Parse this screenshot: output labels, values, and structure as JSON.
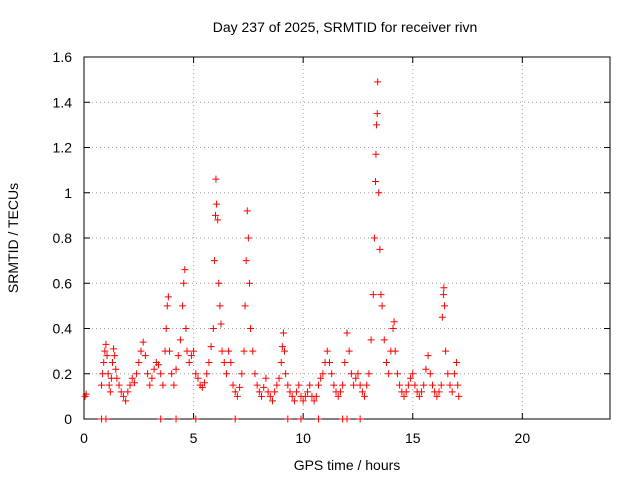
{
  "chart_data": {
    "type": "scatter",
    "title": "Day 237 of 2025, SRMTID for receiver rivn",
    "xlabel": "GPS time / hours",
    "ylabel": "SRMTID / TECUs",
    "xlim": [
      0,
      24
    ],
    "ylim": [
      0,
      1.6
    ],
    "xticks": [
      0,
      5,
      10,
      15,
      20
    ],
    "xtick_labels": [
      "0",
      "5",
      "10",
      "15",
      "20"
    ],
    "yticks": [
      0,
      0.2,
      0.4,
      0.6,
      0.8,
      1.0,
      1.2,
      1.4,
      1.6
    ],
    "ytick_labels": [
      "0",
      "0.2",
      "0.4",
      "0.6",
      "0.8",
      "1",
      "1.2",
      "1.4",
      "1.6"
    ],
    "grid": true,
    "marker": "+",
    "color": "#ff0000",
    "series": [
      {
        "name": "SRMTID",
        "points": [
          [
            0.05,
            0.1
          ],
          [
            0.1,
            0.11
          ],
          [
            0.8,
            0.15
          ],
          [
            0.85,
            0.2
          ],
          [
            0.9,
            0.25
          ],
          [
            0.95,
            0.3
          ],
          [
            1.0,
            0.33
          ],
          [
            1.05,
            0.28
          ],
          [
            1.1,
            0.2
          ],
          [
            1.15,
            0.15
          ],
          [
            1.2,
            0.12
          ],
          [
            1.25,
            0.18
          ],
          [
            1.3,
            0.25
          ],
          [
            1.35,
            0.31
          ],
          [
            1.4,
            0.28
          ],
          [
            1.45,
            0.22
          ],
          [
            1.5,
            0.18
          ],
          [
            1.6,
            0.15
          ],
          [
            1.7,
            0.12
          ],
          [
            1.8,
            0.1
          ],
          [
            1.9,
            0.08
          ],
          [
            2.0,
            0.12
          ],
          [
            2.1,
            0.15
          ],
          [
            2.2,
            0.18
          ],
          [
            2.3,
            0.16
          ],
          [
            2.4,
            0.2
          ],
          [
            2.5,
            0.25
          ],
          [
            2.6,
            0.3
          ],
          [
            2.7,
            0.34
          ],
          [
            2.8,
            0.28
          ],
          [
            2.9,
            0.2
          ],
          [
            3.0,
            0.15
          ],
          [
            3.1,
            0.18
          ],
          [
            3.2,
            0.22
          ],
          [
            3.3,
            0.25
          ],
          [
            3.4,
            0.24
          ],
          [
            3.5,
            0.2
          ],
          [
            3.6,
            0.15
          ],
          [
            3.7,
            0.3
          ],
          [
            3.75,
            0.4
          ],
          [
            3.8,
            0.5
          ],
          [
            3.85,
            0.54
          ],
          [
            3.9,
            0.3
          ],
          [
            4.0,
            0.2
          ],
          [
            4.1,
            0.15
          ],
          [
            4.2,
            0.22
          ],
          [
            4.3,
            0.28
          ],
          [
            4.4,
            0.35
          ],
          [
            4.5,
            0.5
          ],
          [
            4.55,
            0.6
          ],
          [
            4.6,
            0.66
          ],
          [
            4.65,
            0.4
          ],
          [
            4.7,
            0.3
          ],
          [
            4.8,
            0.25
          ],
          [
            4.9,
            0.28
          ],
          [
            5.0,
            0.3
          ],
          [
            5.1,
            0.2
          ],
          [
            5.2,
            0.18
          ],
          [
            5.3,
            0.15
          ],
          [
            5.4,
            0.14
          ],
          [
            5.5,
            0.16
          ],
          [
            5.6,
            0.2
          ],
          [
            5.7,
            0.25
          ],
          [
            5.8,
            0.32
          ],
          [
            5.9,
            0.4
          ],
          [
            5.95,
            0.7
          ],
          [
            6.0,
            0.9
          ],
          [
            6.02,
            1.06
          ],
          [
            6.05,
            0.95
          ],
          [
            6.1,
            0.88
          ],
          [
            6.15,
            0.6
          ],
          [
            6.2,
            0.5
          ],
          [
            6.25,
            0.42
          ],
          [
            6.3,
            0.3
          ],
          [
            6.4,
            0.25
          ],
          [
            6.5,
            0.2
          ],
          [
            6.6,
            0.3
          ],
          [
            6.7,
            0.25
          ],
          [
            6.8,
            0.15
          ],
          [
            6.9,
            0.12
          ],
          [
            7.0,
            0.1
          ],
          [
            7.1,
            0.14
          ],
          [
            7.2,
            0.2
          ],
          [
            7.3,
            0.3
          ],
          [
            7.35,
            0.5
          ],
          [
            7.4,
            0.7
          ],
          [
            7.45,
            0.92
          ],
          [
            7.5,
            0.8
          ],
          [
            7.55,
            0.6
          ],
          [
            7.6,
            0.4
          ],
          [
            7.7,
            0.3
          ],
          [
            7.8,
            0.2
          ],
          [
            7.9,
            0.15
          ],
          [
            8.0,
            0.12
          ],
          [
            8.1,
            0.1
          ],
          [
            8.2,
            0.14
          ],
          [
            8.3,
            0.18
          ],
          [
            8.4,
            0.12
          ],
          [
            8.5,
            0.1
          ],
          [
            8.6,
            0.08
          ],
          [
            8.7,
            0.12
          ],
          [
            8.8,
            0.15
          ],
          [
            8.9,
            0.18
          ],
          [
            9.0,
            0.25
          ],
          [
            9.05,
            0.32
          ],
          [
            9.1,
            0.38
          ],
          [
            9.15,
            0.3
          ],
          [
            9.2,
            0.2
          ],
          [
            9.3,
            0.15
          ],
          [
            9.4,
            0.12
          ],
          [
            9.5,
            0.1
          ],
          [
            9.6,
            0.08
          ],
          [
            9.7,
            0.12
          ],
          [
            9.8,
            0.15
          ],
          [
            9.9,
            0.1
          ],
          [
            10.0,
            0.08
          ],
          [
            10.1,
            0.1
          ],
          [
            10.2,
            0.12
          ],
          [
            10.3,
            0.15
          ],
          [
            10.4,
            0.1
          ],
          [
            10.5,
            0.08
          ],
          [
            10.6,
            0.1
          ],
          [
            10.7,
            0.15
          ],
          [
            10.8,
            0.18
          ],
          [
            10.9,
            0.2
          ],
          [
            11.0,
            0.25
          ],
          [
            11.1,
            0.3
          ],
          [
            11.2,
            0.25
          ],
          [
            11.3,
            0.2
          ],
          [
            11.4,
            0.15
          ],
          [
            11.5,
            0.12
          ],
          [
            11.6,
            0.1
          ],
          [
            11.7,
            0.12
          ],
          [
            11.8,
            0.15
          ],
          [
            11.9,
            0.25
          ],
          [
            12.0,
            0.38
          ],
          [
            12.1,
            0.3
          ],
          [
            12.2,
            0.2
          ],
          [
            12.3,
            0.15
          ],
          [
            12.4,
            0.18
          ],
          [
            12.5,
            0.2
          ],
          [
            12.6,
            0.15
          ],
          [
            12.7,
            0.12
          ],
          [
            12.8,
            0.1
          ],
          [
            12.9,
            0.15
          ],
          [
            13.0,
            0.2
          ],
          [
            13.1,
            0.35
          ],
          [
            13.2,
            0.55
          ],
          [
            13.25,
            0.8
          ],
          [
            13.3,
            1.05
          ],
          [
            13.32,
            1.17
          ],
          [
            13.35,
            1.3
          ],
          [
            13.38,
            1.35
          ],
          [
            13.4,
            1.49
          ],
          [
            13.45,
            1.0
          ],
          [
            13.5,
            0.75
          ],
          [
            13.55,
            0.55
          ],
          [
            13.6,
            0.5
          ],
          [
            13.7,
            0.35
          ],
          [
            13.8,
            0.25
          ],
          [
            13.9,
            0.2
          ],
          [
            14.0,
            0.3
          ],
          [
            14.1,
            0.4
          ],
          [
            14.15,
            0.43
          ],
          [
            14.2,
            0.3
          ],
          [
            14.3,
            0.2
          ],
          [
            14.4,
            0.15
          ],
          [
            14.5,
            0.12
          ],
          [
            14.6,
            0.1
          ],
          [
            14.7,
            0.12
          ],
          [
            14.8,
            0.15
          ],
          [
            14.9,
            0.18
          ],
          [
            15.0,
            0.2
          ],
          [
            15.1,
            0.15
          ],
          [
            15.2,
            0.12
          ],
          [
            15.3,
            0.1
          ],
          [
            15.4,
            0.12
          ],
          [
            15.5,
            0.15
          ],
          [
            15.6,
            0.22
          ],
          [
            15.7,
            0.28
          ],
          [
            15.8,
            0.2
          ],
          [
            15.9,
            0.15
          ],
          [
            16.0,
            0.12
          ],
          [
            16.1,
            0.1
          ],
          [
            16.2,
            0.12
          ],
          [
            16.3,
            0.15
          ],
          [
            16.35,
            0.45
          ],
          [
            16.4,
            0.55
          ],
          [
            16.42,
            0.58
          ],
          [
            16.45,
            0.5
          ],
          [
            16.5,
            0.3
          ],
          [
            16.6,
            0.2
          ],
          [
            16.7,
            0.15
          ],
          [
            16.8,
            0.12
          ],
          [
            16.9,
            0.2
          ],
          [
            17.0,
            0.25
          ],
          [
            17.05,
            0.15
          ],
          [
            17.1,
            0.1
          ],
          [
            0.8,
            0.0
          ],
          [
            1.0,
            0.0
          ],
          [
            3.5,
            0.0
          ],
          [
            4.2,
            0.0
          ],
          [
            5.1,
            0.0
          ],
          [
            6.9,
            0.0
          ],
          [
            9.3,
            0.0
          ],
          [
            9.9,
            0.0
          ],
          [
            10.7,
            0.0
          ],
          [
            11.8,
            0.0
          ],
          [
            12.0,
            0.0
          ],
          [
            12.6,
            0.0
          ]
        ]
      }
    ]
  }
}
